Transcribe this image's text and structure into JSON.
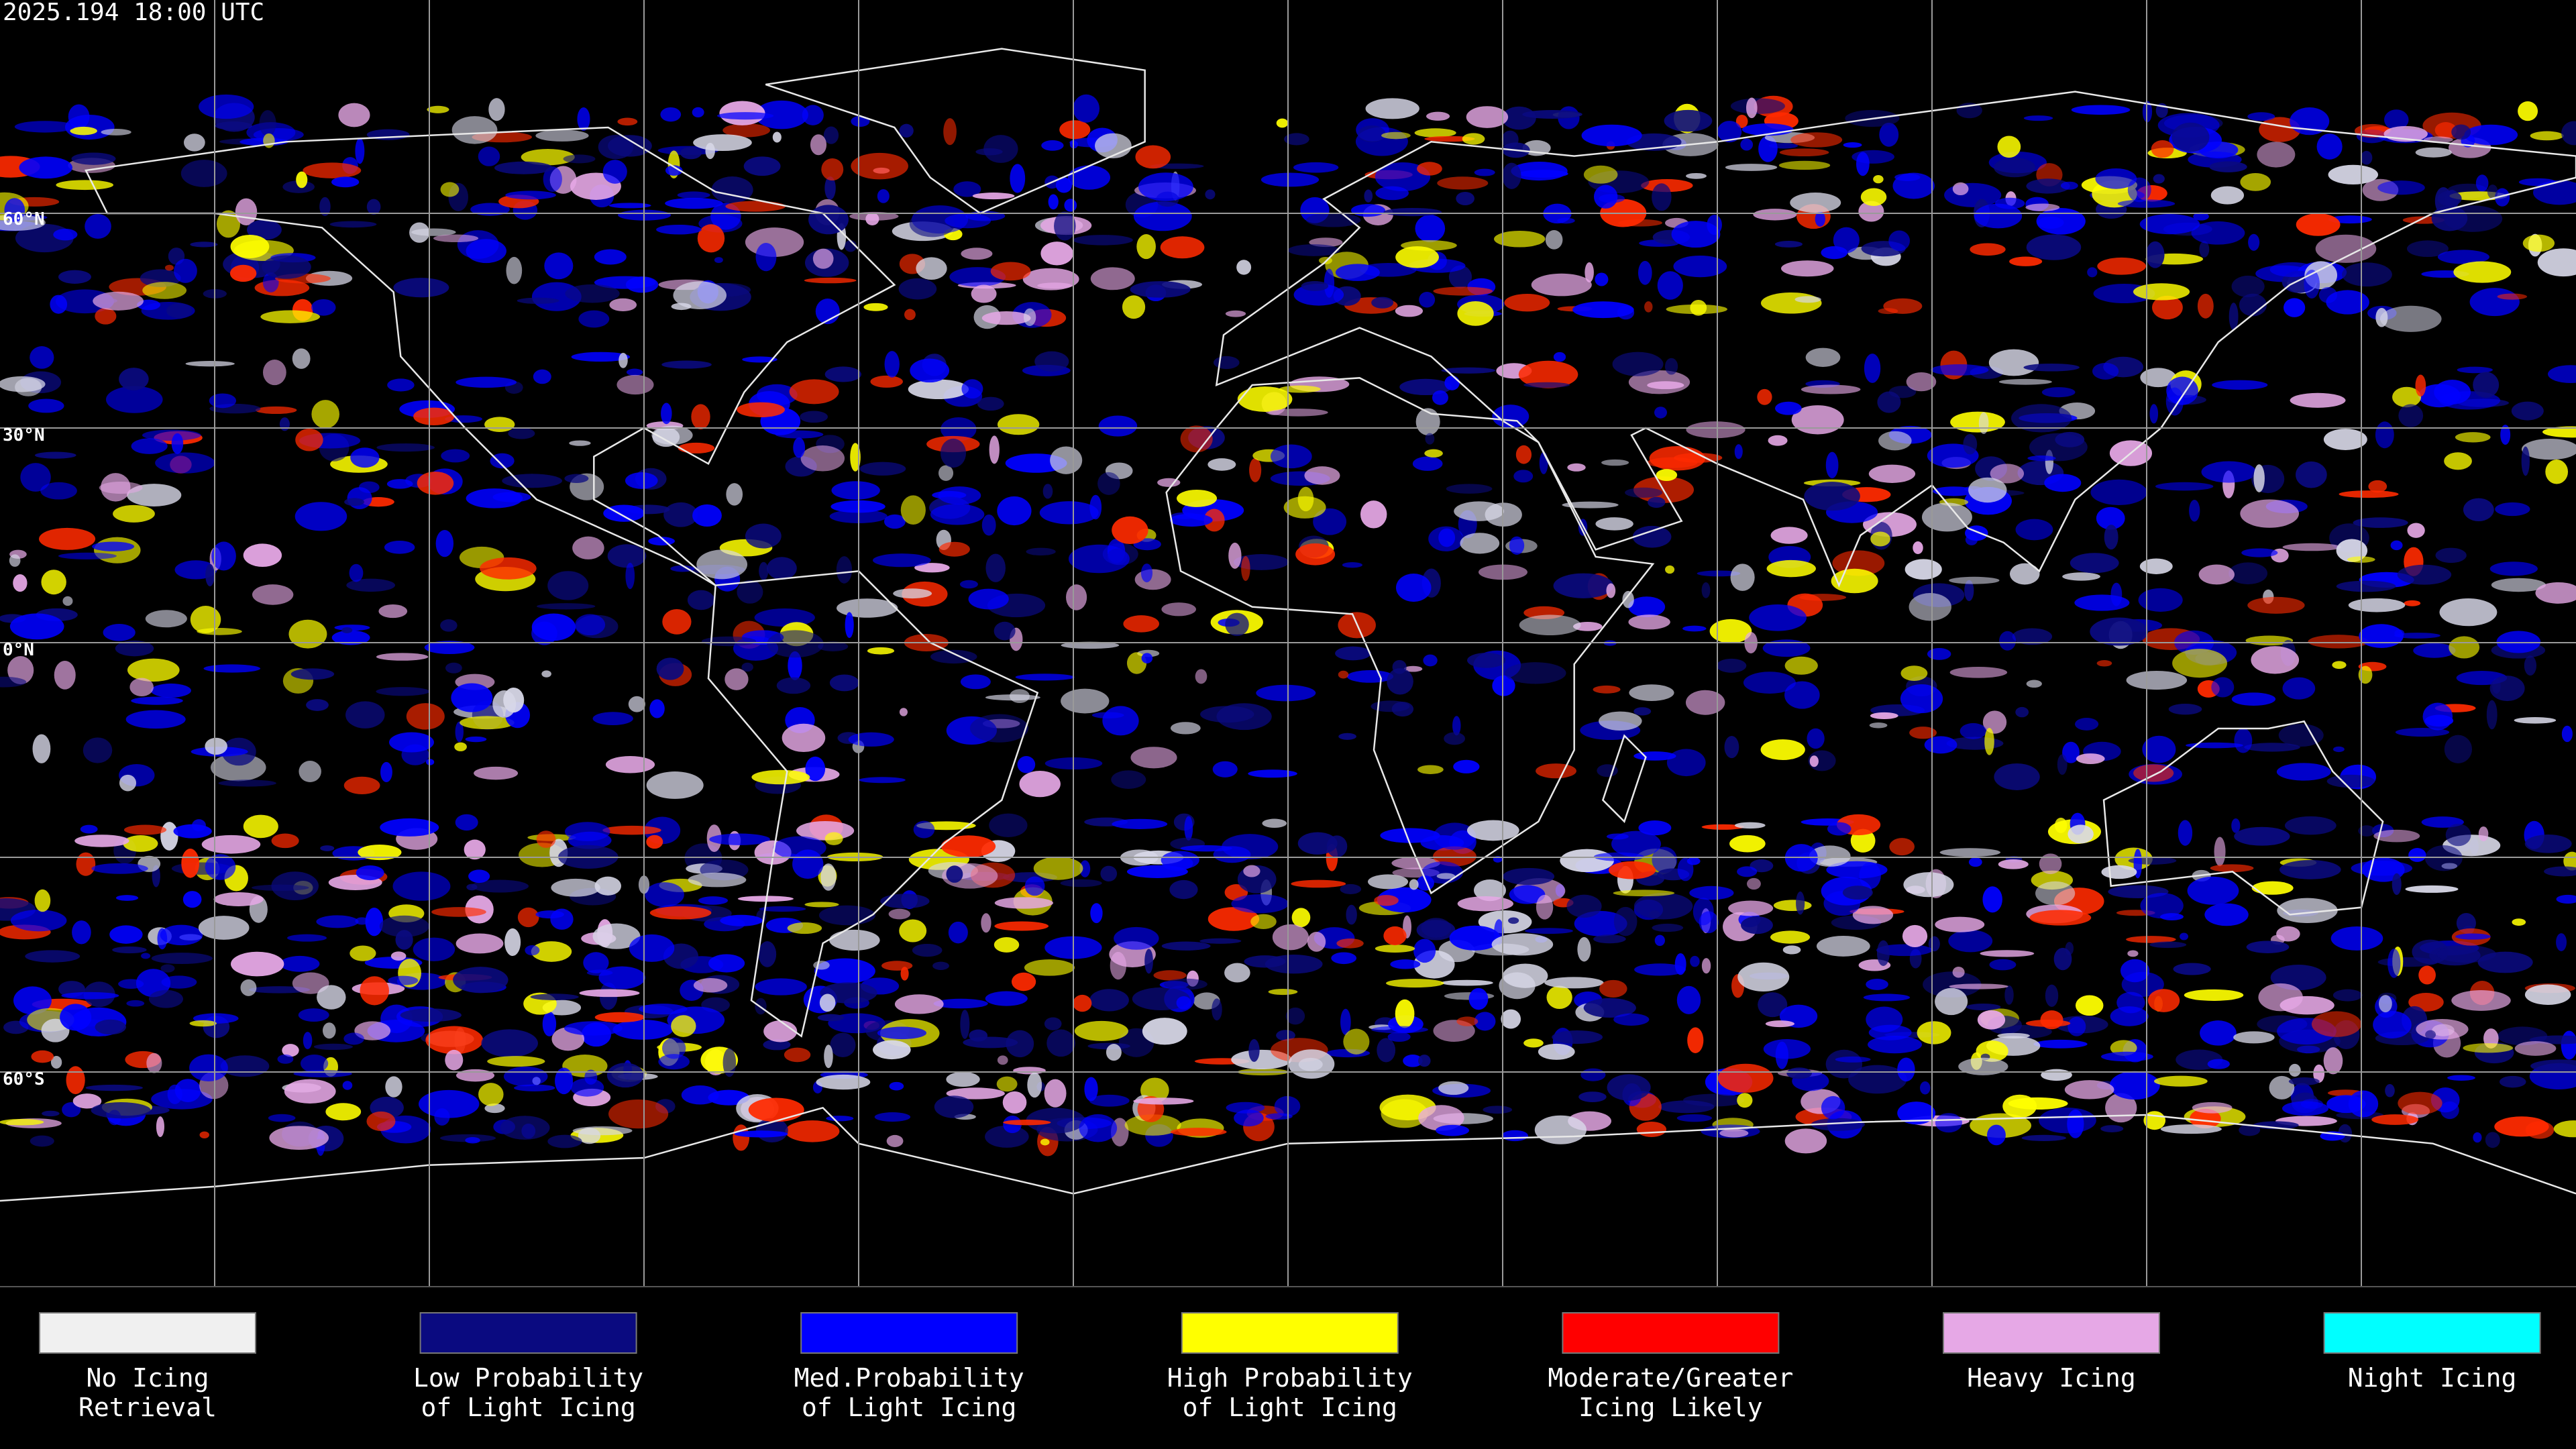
{
  "header": {
    "timestamp": "2025.194 18:00 UTC"
  },
  "map": {
    "lat_labels": [
      "60°N",
      "30°N",
      "0°N",
      "60°S"
    ]
  },
  "legend": {
    "items": [
      {
        "lines": [
          "No Icing",
          "Retrieval"
        ],
        "color": "#f0f0f0"
      },
      {
        "lines": [
          "Low Probability",
          "of Light Icing"
        ],
        "color": "#0a0a80"
      },
      {
        "lines": [
          "Med.Probability",
          "of Light Icing"
        ],
        "color": "#0000ff"
      },
      {
        "lines": [
          "High Probability",
          "of Light Icing"
        ],
        "color": "#ffff00"
      },
      {
        "lines": [
          "Moderate/Greater",
          "Icing Likely"
        ],
        "color": "#ff0000"
      },
      {
        "lines": [
          "Heavy Icing"
        ],
        "color": "#e6a8e6"
      },
      {
        "lines": [
          "Night Icing"
        ],
        "color": "#00ffff"
      }
    ]
  }
}
